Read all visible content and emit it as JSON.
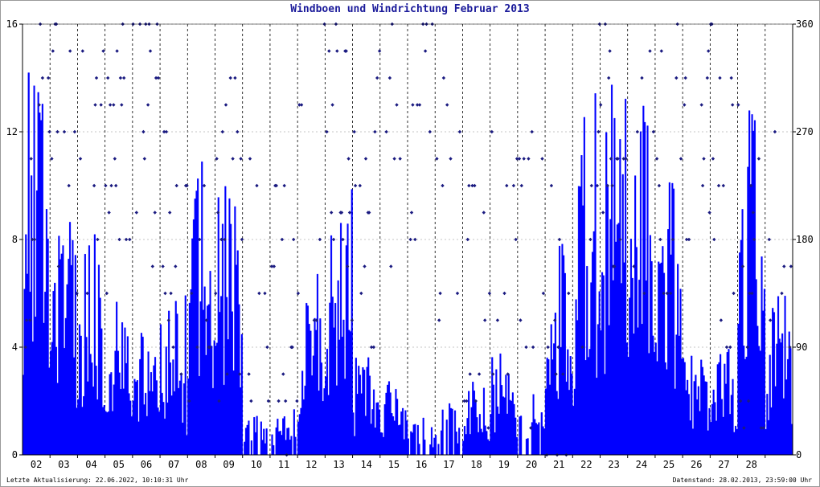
{
  "title": "Windboen und Windrichtung Februar 2013",
  "footer": {
    "left": "Letzte Aktualisierung: 22.06.2022, 10:10:31 Uhr",
    "right": "Datenstand: 28.02.2013, 23:59:00 Uhr"
  },
  "colors": {
    "gust": "#0000ff",
    "direction": "#1a1a80",
    "title": "#1a1a9a",
    "grid": "#000000"
  },
  "chart_data": {
    "type": "bar",
    "title": "Windboen und Windrichtung Februar 2013",
    "x_range_days": [
      1,
      29
    ],
    "x_tick_labels": [
      "02",
      "03",
      "04",
      "05",
      "06",
      "07",
      "08",
      "09",
      "10",
      "11",
      "12",
      "13",
      "14",
      "15",
      "16",
      "17",
      "18",
      "19",
      "20",
      "21",
      "22",
      "23",
      "24",
      "25",
      "26",
      "27",
      "28"
    ],
    "y_left": {
      "range": [
        0,
        16
      ],
      "ticks": [
        0,
        4,
        8,
        12,
        16
      ]
    },
    "y_right": {
      "range": [
        0,
        360
      ],
      "ticks": [
        0,
        90,
        180,
        270,
        360
      ]
    },
    "grid": true,
    "series": [
      {
        "type": "bar",
        "axis": "left",
        "daily_max_gust": [
          15,
          9,
          8.5,
          6,
          5,
          6,
          11,
          10.5,
          1.5,
          2,
          7,
          10,
          4,
          3,
          1.5,
          2,
          3,
          4,
          2.5,
          8,
          13.5,
          14,
          13.5,
          11,
          4,
          4,
          13.5,
          7
        ]
      },
      {
        "type": "scatter",
        "axis": "right",
        "direction_levels_deg": [
          0,
          22.5,
          45,
          67.5,
          90,
          112.5,
          135,
          157.5,
          180,
          202.5,
          225,
          247.5,
          270,
          292.5,
          315,
          337.5,
          360
        ]
      }
    ]
  }
}
